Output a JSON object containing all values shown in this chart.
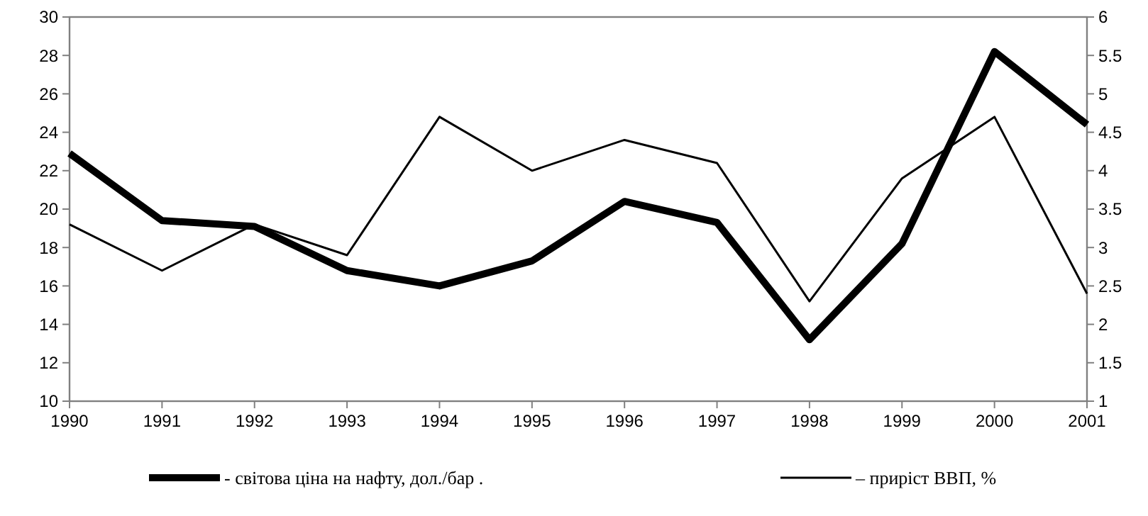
{
  "chart_data": {
    "type": "line",
    "categories": [
      "1990",
      "1991",
      "1992",
      "1993",
      "1994",
      "1995",
      "1996",
      "1997",
      "1998",
      "1999",
      "2000",
      "2001"
    ],
    "series": [
      {
        "name": "- світова ціна на нафту, дол./бар .",
        "color": "#000000",
        "values": [
          22.9,
          19.4,
          19.1,
          16.8,
          16.0,
          17.3,
          20.4,
          19.3,
          13.2,
          18.2,
          28.2,
          24.4
        ]
      },
      {
        "name": "– приріст ВВП, %",
        "color": "#000000",
        "axis": "y2",
        "values": [
          3.3,
          2.7,
          3.3,
          2.9,
          4.7,
          4.0,
          4.4,
          4.1,
          2.3,
          3.9,
          4.7,
          2.4
        ]
      }
    ],
    "ylim": [
      10,
      30
    ],
    "yticks": [
      10,
      12,
      14,
      16,
      18,
      20,
      22,
      24,
      26,
      28,
      30
    ],
    "y2lim": [
      1,
      6
    ],
    "y2ticks": [
      1,
      {
        "value": 1.5,
        "label": "1.5"
      },
      2,
      {
        "value": 2.5,
        "label": "2.5"
      },
      3,
      {
        "value": 3.5,
        "label": "3.5"
      },
      4,
      {
        "value": 4.5,
        "label": "4.5"
      },
      5,
      {
        "value": 5.5,
        "label": "5.5"
      },
      6
    ],
    "legend": "bottom",
    "marker": "none",
    "line_style": "solid"
  }
}
